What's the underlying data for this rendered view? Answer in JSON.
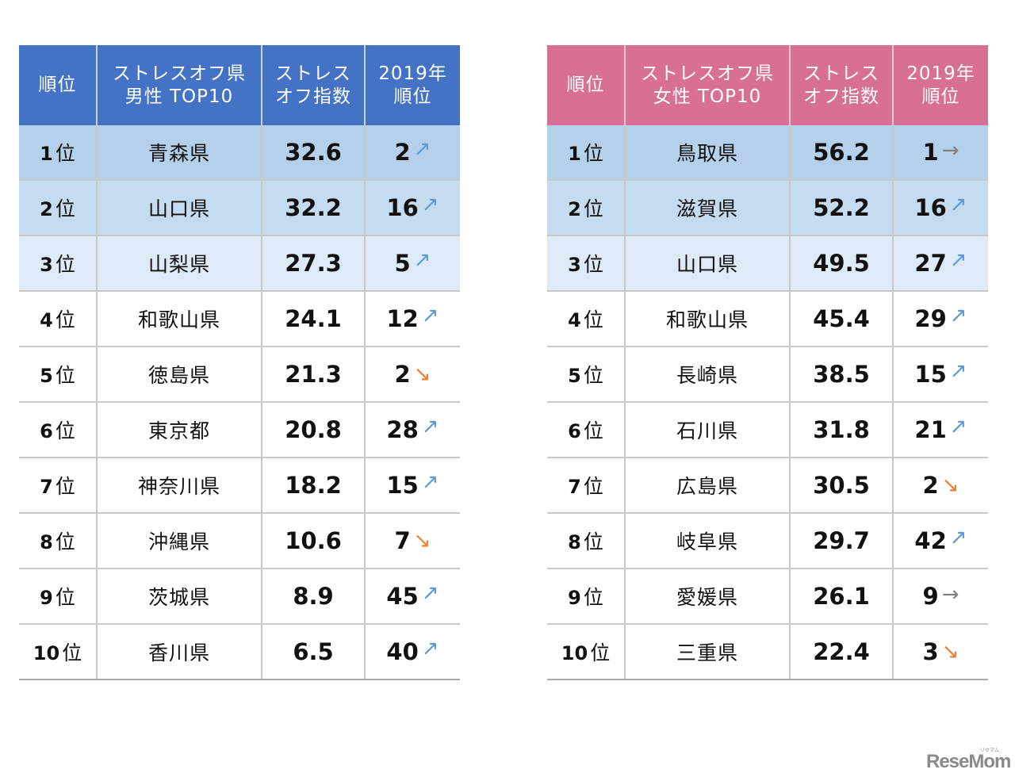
{
  "colors": {
    "male_header": "#4472c4",
    "female_header": "#d87093",
    "row1": "#b5d0ea",
    "row2": "#c5dbf0",
    "row3": "#deeaf7",
    "arrow_up": "#5b9bd5",
    "arrow_down": "#ed7d31",
    "arrow_same": "#7f7f7f"
  },
  "male": {
    "headers": {
      "rank": "順位",
      "pref_line1": "ストレスオフ県",
      "pref_line2": "男性 TOP10",
      "index_line1": "ストレス",
      "index_line2": "オフ指数",
      "prev_line1": "2019年",
      "prev_line2": "順位"
    },
    "rows": [
      {
        "rank": "1",
        "unit": "位",
        "pref": "青森県",
        "score": "32.6",
        "prev": "2",
        "trend": "up",
        "arrow": "↗"
      },
      {
        "rank": "2",
        "unit": "位",
        "pref": "山口県",
        "score": "32.2",
        "prev": "16",
        "trend": "up",
        "arrow": "↗"
      },
      {
        "rank": "3",
        "unit": "位",
        "pref": "山梨県",
        "score": "27.3",
        "prev": "5",
        "trend": "up",
        "arrow": "↗"
      },
      {
        "rank": "4",
        "unit": "位",
        "pref": "和歌山県",
        "score": "24.1",
        "prev": "12",
        "trend": "up",
        "arrow": "↗"
      },
      {
        "rank": "5",
        "unit": "位",
        "pref": "徳島県",
        "score": "21.3",
        "prev": "2",
        "trend": "down",
        "arrow": "↘"
      },
      {
        "rank": "6",
        "unit": "位",
        "pref": "東京都",
        "score": "20.8",
        "prev": "28",
        "trend": "up",
        "arrow": "↗"
      },
      {
        "rank": "7",
        "unit": "位",
        "pref": "神奈川県",
        "score": "18.2",
        "prev": "15",
        "trend": "up",
        "arrow": "↗"
      },
      {
        "rank": "8",
        "unit": "位",
        "pref": "沖縄県",
        "score": "10.6",
        "prev": "7",
        "trend": "down",
        "arrow": "↘"
      },
      {
        "rank": "9",
        "unit": "位",
        "pref": "茨城県",
        "score": "8.9",
        "prev": "45",
        "trend": "up",
        "arrow": "↗"
      },
      {
        "rank": "10",
        "unit": "位",
        "pref": "香川県",
        "score": "6.5",
        "prev": "40",
        "trend": "up",
        "arrow": "↗"
      }
    ]
  },
  "female": {
    "headers": {
      "rank": "順位",
      "pref_line1": "ストレスオフ県",
      "pref_line2": "女性 TOP10",
      "index_line1": "ストレス",
      "index_line2": "オフ指数",
      "prev_line1": "2019年",
      "prev_line2": "順位"
    },
    "rows": [
      {
        "rank": "1",
        "unit": "位",
        "pref": "鳥取県",
        "score": "56.2",
        "prev": "1",
        "trend": "same",
        "arrow": "→"
      },
      {
        "rank": "2",
        "unit": "位",
        "pref": "滋賀県",
        "score": "52.2",
        "prev": "16",
        "trend": "up",
        "arrow": "↗"
      },
      {
        "rank": "3",
        "unit": "位",
        "pref": "山口県",
        "score": "49.5",
        "prev": "27",
        "trend": "up",
        "arrow": "↗"
      },
      {
        "rank": "4",
        "unit": "位",
        "pref": "和歌山県",
        "score": "45.4",
        "prev": "29",
        "trend": "up",
        "arrow": "↗"
      },
      {
        "rank": "5",
        "unit": "位",
        "pref": "長崎県",
        "score": "38.5",
        "prev": "15",
        "trend": "up",
        "arrow": "↗"
      },
      {
        "rank": "6",
        "unit": "位",
        "pref": "石川県",
        "score": "31.8",
        "prev": "21",
        "trend": "up",
        "arrow": "↗"
      },
      {
        "rank": "7",
        "unit": "位",
        "pref": "広島県",
        "score": "30.5",
        "prev": "2",
        "trend": "down",
        "arrow": "↘"
      },
      {
        "rank": "8",
        "unit": "位",
        "pref": "岐阜県",
        "score": "29.7",
        "prev": "42",
        "trend": "up",
        "arrow": "↗"
      },
      {
        "rank": "9",
        "unit": "位",
        "pref": "愛媛県",
        "score": "26.1",
        "prev": "9",
        "trend": "same",
        "arrow": "→"
      },
      {
        "rank": "10",
        "unit": "位",
        "pref": "三重県",
        "score": "22.4",
        "prev": "3",
        "trend": "down",
        "arrow": "↘"
      }
    ]
  },
  "logo": {
    "text": "ReseMom",
    "sub": "リセマム"
  }
}
